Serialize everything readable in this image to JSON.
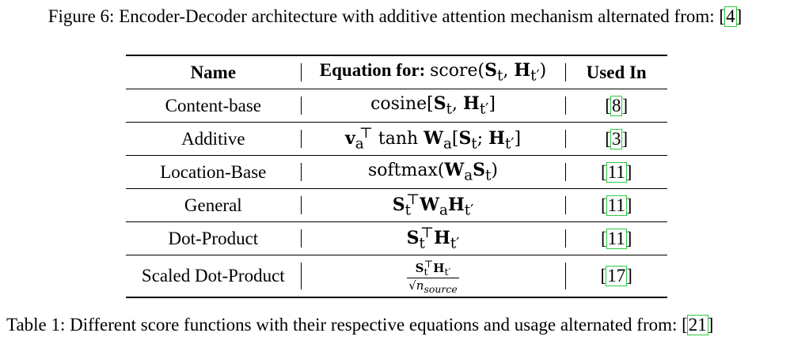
{
  "figure_caption": {
    "text": "Figure 6: Encoder-Decoder architecture with additive attention mechanism alternated from: [",
    "cite": "4",
    "close": "]"
  },
  "table": {
    "headers": {
      "name": "Name",
      "equation_label": "Equation for:",
      "equation_math": "score(St, Ht′)",
      "used_in": "Used In"
    },
    "rows": [
      {
        "name": "Content-base",
        "equation": "cosine[St, Ht′]",
        "cite": "8"
      },
      {
        "name": "Additive",
        "equation": "va⊤ tanh Wa[St; Ht′]",
        "cite": "3"
      },
      {
        "name": "Location-Base",
        "equation": "softmax(WaSt)",
        "cite": "11"
      },
      {
        "name": "General",
        "equation": "St⊤WaHt′",
        "cite": "11"
      },
      {
        "name": "Dot-Product",
        "equation": "St⊤Ht′",
        "cite": "11"
      },
      {
        "name": "Scaled Dot-Product",
        "equation": "St⊤Ht′ / √nsource",
        "cite": "17"
      }
    ]
  },
  "table_caption": {
    "text": "Table 1: Different score functions with their respective equations and usage alternated from: [",
    "cite": "21",
    "close": "]"
  }
}
